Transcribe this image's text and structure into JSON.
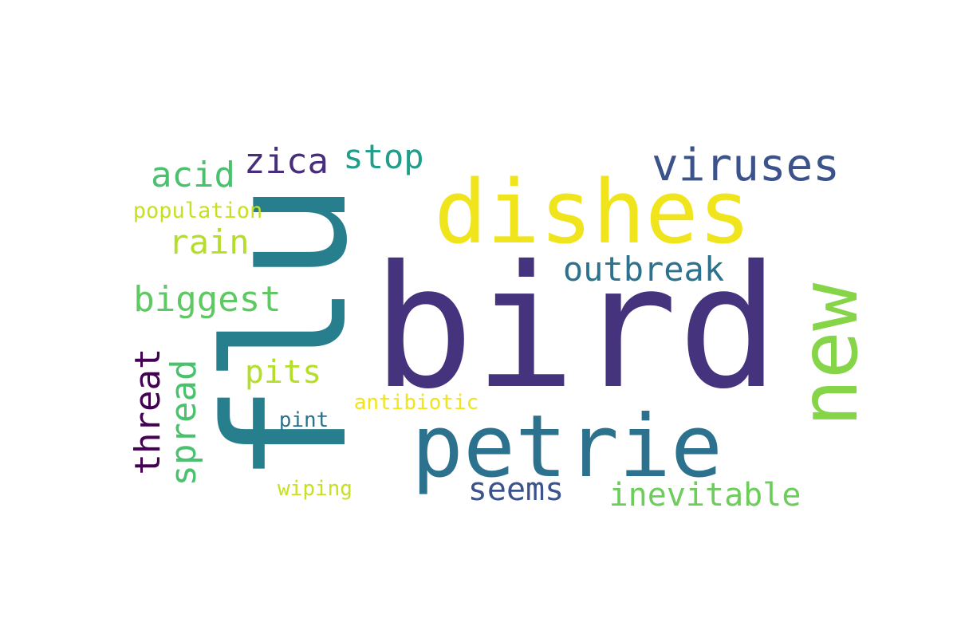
{
  "words": [
    {
      "id": "bird",
      "text": "bird",
      "color": "#46337e"
    },
    {
      "id": "flu",
      "text": "flu",
      "color": "#277f8e"
    },
    {
      "id": "dishes",
      "text": "dishes",
      "color": "#f0e51c"
    },
    {
      "id": "petrie",
      "text": "petrie",
      "color": "#2c728e"
    },
    {
      "id": "new",
      "text": "new",
      "color": "#86d549"
    },
    {
      "id": "viruses",
      "text": "viruses",
      "color": "#3b528b"
    },
    {
      "id": "outbreak",
      "text": "outbreak",
      "color": "#2c728e"
    },
    {
      "id": "biggest",
      "text": "biggest",
      "color": "#5ec962"
    },
    {
      "id": "rain",
      "text": "rain",
      "color": "#b5de2b"
    },
    {
      "id": "acid",
      "text": "acid",
      "color": "#4ac16d"
    },
    {
      "id": "zica",
      "text": "zica",
      "color": "#472d7b"
    },
    {
      "id": "stop",
      "text": "stop",
      "color": "#1f9e89"
    },
    {
      "id": "population",
      "text": "population",
      "color": "#c8e020"
    },
    {
      "id": "pits",
      "text": "pits",
      "color": "#b5de2b"
    },
    {
      "id": "threat",
      "text": "threat",
      "color": "#440154"
    },
    {
      "id": "spread",
      "text": "spread",
      "color": "#4ac16d"
    },
    {
      "id": "antibiotic",
      "text": "antibiotic",
      "color": "#f0e51c"
    },
    {
      "id": "pint",
      "text": "pint",
      "color": "#2c728e"
    },
    {
      "id": "seems",
      "text": "seems",
      "color": "#3b528b"
    },
    {
      "id": "inevitable",
      "text": "inevitable",
      "color": "#6ccd5a"
    },
    {
      "id": "wiping",
      "text": "wiping",
      "color": "#c8e020"
    }
  ]
}
